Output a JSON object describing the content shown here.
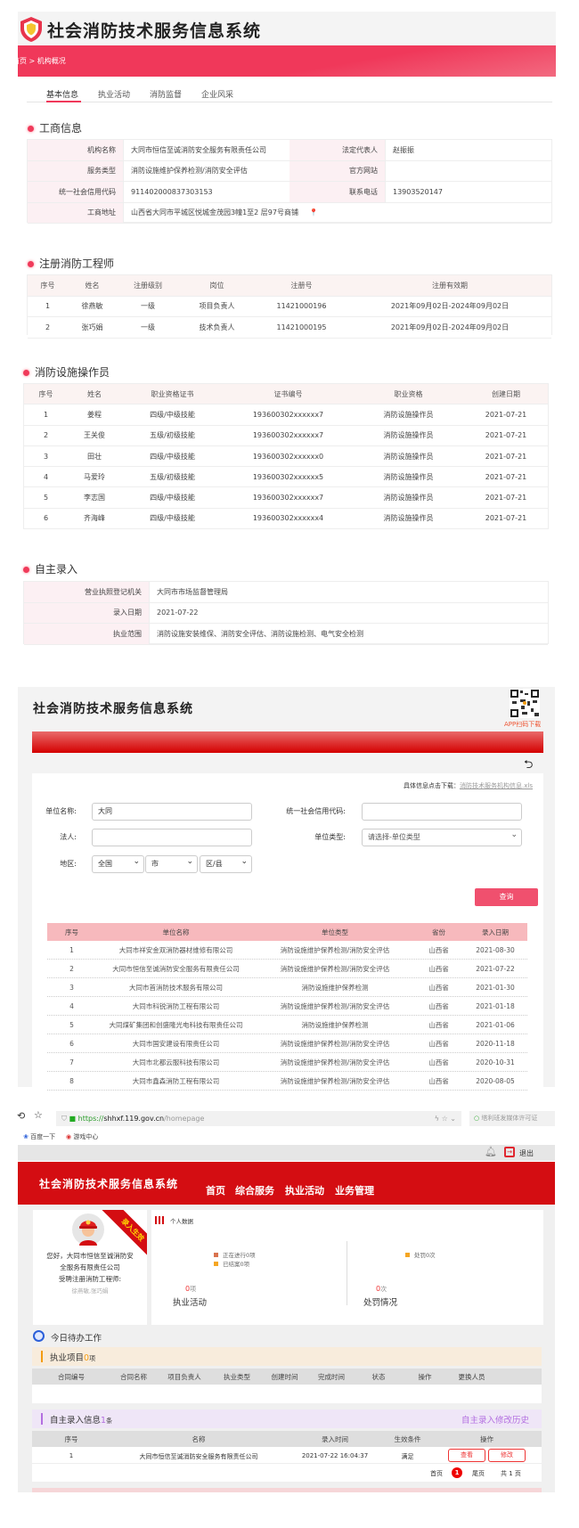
{
  "s1": {
    "app_title": "社会消防技术服务信息系统",
    "breadcrumb": "首页 > 机构概况",
    "tabs": [
      "基本信息",
      "执业活动",
      "消防监督",
      "企业风采"
    ],
    "business": {
      "title": "工商信息",
      "rows": [
        [
          "机构名称",
          "大同市恒信至诚消防安全服务有限责任公司",
          "法定代表人",
          "赵振振"
        ],
        [
          "服务类型",
          "消防设施维护保养检测/消防安全评估",
          "官方网站",
          ""
        ],
        [
          "统一社会信用代码",
          "91140200083730315​3",
          "联系电话",
          "13903520147"
        ],
        [
          "工商地址",
          "山西省大同市平城区悦城金茂园3幢1至2 层97号商铺"
        ]
      ]
    },
    "engineers": {
      "title": "注册消防工程师",
      "headers": [
        "序号",
        "姓名",
        "注册级别",
        "岗位",
        "注册号",
        "注册有效期"
      ],
      "rows": [
        [
          "1",
          "徐燕敏",
          "一级",
          "项目负责人",
          "11421000196",
          "2021年09月02日-2024年09月02日"
        ],
        [
          "2",
          "张巧娟",
          "一级",
          "技术负责人",
          "11421000195",
          "2021年09月02日-2024年09月02日"
        ]
      ]
    },
    "operators": {
      "title": "消防设施操作员",
      "headers": [
        "序号",
        "姓名",
        "职业资格证书",
        "证书编号",
        "职业资格",
        "创建日期"
      ],
      "rows": [
        [
          "1",
          "姜程",
          "四级/中级技能",
          "193600302xxxxxx7",
          "消防设施操作员",
          "2021-07-21"
        ],
        [
          "2",
          "王关俊",
          "五级/初级技能",
          "193600302xxxxxx7",
          "消防设施操作员",
          "2021-07-21"
        ],
        [
          "3",
          "田壮",
          "四级/中级技能",
          "193600302xxxxxx0",
          "消防设施操作员",
          "2021-07-21"
        ],
        [
          "4",
          "马爱玲",
          "五级/初级技能",
          "193600302xxxxxx5",
          "消防设施操作员",
          "2021-07-21"
        ],
        [
          "5",
          "李志国",
          "四级/中级技能",
          "193600302xxxxxx7",
          "消防设施操作员",
          "2021-07-21"
        ],
        [
          "6",
          "齐海峰",
          "四级/中级技能",
          "193600302xxxxxx4",
          "消防设施操作员",
          "2021-07-21"
        ]
      ]
    },
    "self_entry": {
      "title": "自主录入",
      "rows": [
        [
          "营业执照登记机关",
          "大同市市场监督管理局"
        ],
        [
          "录入日期",
          "2021-07-22"
        ],
        [
          "执业范围",
          "消防设施安装维保、消防安全评估、消防设施检测、电气安全检测"
        ]
      ]
    }
  },
  "s2": {
    "app_title": "社会消防技术服务信息系统",
    "qr_caption": "APP扫码下载",
    "download_label": "具体信息点击下载：",
    "download_link": "消防技术服务机构信息.xls",
    "form": {
      "unit_name_label": "单位名称:",
      "unit_name_value": "大同",
      "credit_code_label": "统一社会信用代码:",
      "credit_code_value": "",
      "legal_label": "法人:",
      "legal_value": "",
      "unit_type_label": "单位类型:",
      "unit_type_value": "请选择-单位类型",
      "region_label": "地区:",
      "province": "全国",
      "city": "市",
      "district": "区/县",
      "query_button": "查询"
    },
    "results": {
      "headers": [
        "序号",
        "单位名称",
        "单位类型",
        "省份",
        "录入日期"
      ],
      "rows": [
        [
          "1",
          "大同市祥安金双消防器材维修有限公司",
          "消防设施维护保养检测/消防安全评估",
          "山西省",
          "2021-08-30"
        ],
        [
          "2",
          "大同市恒信至诚消防安全服务有限责任公司",
          "消防设施维护保养检测/消防安全评估",
          "山西省",
          "2021-07-22"
        ],
        [
          "3",
          "大同市首消防技术服务有限公司",
          "消防设施维护保养检测",
          "山西省",
          "2021-01-30"
        ],
        [
          "4",
          "大同市科锐消防工程有限公司",
          "消防设施维护保养检测/消防安全评估",
          "山西省",
          "2021-01-18"
        ],
        [
          "5",
          "大同煤矿集团和创盛隆光电科技有限责任公司",
          "消防设施维护保养检测",
          "山西省",
          "2021-01-06"
        ],
        [
          "6",
          "大同市国安建设有限责任公司",
          "消防设施维护保养检测/消防安全评估",
          "山西省",
          "2020-11-18"
        ],
        [
          "7",
          "大同市北都云服科技有限公司",
          "消防设施维护保养检测/消防安全评估",
          "山西省",
          "2020-10-31"
        ],
        [
          "8",
          "大同市鑫森消防工程有限公司",
          "消防设施维护保养检测/消防安全评估",
          "山西省",
          "2020-08-05"
        ]
      ]
    }
  },
  "s3": {
    "browser": {
      "url_scheme": "https://",
      "url_host": "shhxf.119.gov.cn",
      "url_path": "/homepage",
      "side_search": "塔利班发媒体许可证",
      "bookmarks": [
        "百度一下",
        "游戏中心"
      ]
    },
    "logout": "退出",
    "app_title": "社会消防技术服务信息系统",
    "nav": [
      "首页",
      "综合服务",
      "执业活动",
      "业务管理"
    ],
    "profile": {
      "ribbon": "录入生效",
      "greeting": [
        "您好，大同市恒信至诚消防安",
        "全服务有限责任公司",
        "受聘注册消防工程师:"
      ],
      "engineers": "徐燕敏,张巧娟"
    },
    "stats": {
      "title": "个人数据",
      "legend_ongoing": "正在进行0项",
      "legend_closed": "已结案0项",
      "legend_penalty": "处罚0次",
      "exec_count": "0",
      "exec_unit": "项",
      "exec_label": "执业活动",
      "penalty_count": "0",
      "penalty_unit": "次",
      "penalty_label": "处罚情况",
      "colors": {
        "ongoing": "#d9734e",
        "closed": "#f5a623",
        "penalty": "#f5a623"
      }
    },
    "todo_title": "今日待办工作",
    "projects": {
      "label": "执业项目",
      "count": "0",
      "unit": "项",
      "headers": [
        "合同编号",
        "合同名称",
        "项目负责人",
        "执业类型",
        "创建时间",
        "完成时间",
        "状态",
        "操作",
        "更换人员"
      ]
    },
    "self_info": {
      "label": "自主录入信息",
      "count": "1",
      "unit": "条",
      "history_link": "自主录入修改历史",
      "headers": [
        "序号",
        "名称",
        "录入时间",
        "生效条件",
        "操作"
      ],
      "row": [
        "1",
        "大同市恒信至诚消防安全服务有限责任公司",
        "2021-07-22 16:04:37",
        "满足"
      ],
      "view_button": "查看",
      "edit_button": "修改",
      "pager": {
        "first": "首页",
        "current": "1",
        "last": "尾页",
        "total": "共 1 页"
      }
    }
  }
}
